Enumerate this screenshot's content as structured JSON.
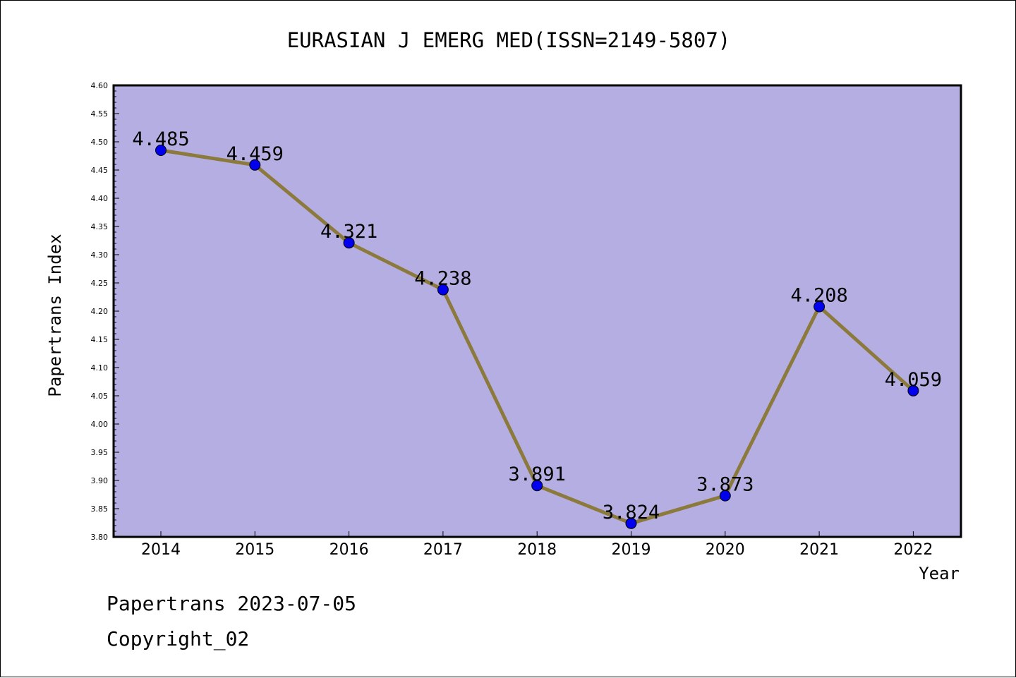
{
  "chart_data": {
    "type": "line",
    "title": "EURASIAN J EMERG MED(ISSN=2149-5807)",
    "xlabel": "Year",
    "ylabel": "Papertrans Index",
    "categories": [
      "2014",
      "2015",
      "2016",
      "2017",
      "2018",
      "2019",
      "2020",
      "2021",
      "2022"
    ],
    "values": [
      4.485,
      4.459,
      4.321,
      4.238,
      3.891,
      3.824,
      3.873,
      4.208,
      4.059
    ],
    "data_labels": [
      "4.485",
      "4.459",
      "4.321",
      "4.238",
      "3.891",
      "3.824",
      "3.873",
      "4.208",
      "4.059"
    ],
    "ylim": [
      3.8,
      4.6
    ],
    "yticks": [
      "3.80",
      "3.85",
      "3.90",
      "3.95",
      "4.00",
      "4.05",
      "4.10",
      "4.15",
      "4.20",
      "4.25",
      "4.30",
      "4.35",
      "4.40",
      "4.45",
      "4.50",
      "4.55",
      "4.60"
    ],
    "grid": false,
    "legend": "none",
    "colors": {
      "plot_background": "#b4aee2",
      "line": "#8c7a3d",
      "marker": "#0000ee"
    }
  },
  "footer": {
    "line1": "Papertrans 2023-07-05",
    "line2": "Copyright_02"
  }
}
